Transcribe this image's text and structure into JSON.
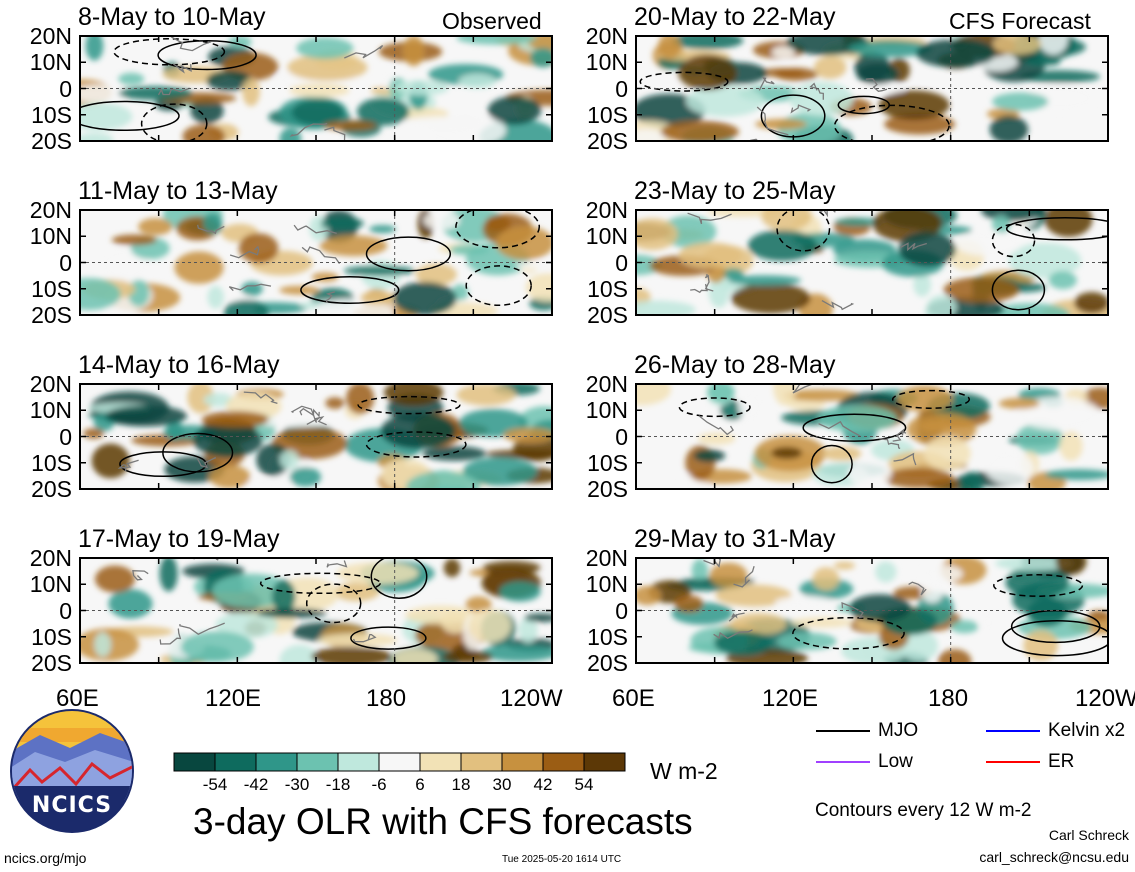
{
  "left_column_label": "Observed",
  "right_column_label": "CFS Forecast",
  "lat_labels": [
    "20N",
    "10N",
    "0",
    "10S",
    "20S"
  ],
  "lon_labels": [
    "60E",
    "120E",
    "180",
    "120W"
  ],
  "main_title": "3-day OLR with CFS forecasts",
  "units": "W m-2",
  "contour_note": "Contours every 12 W m-2",
  "author": "Carl Schreck",
  "email": "carl_schreck@ncsu.edu",
  "website": "ncics.org/mjo",
  "timestamp": "Tue 2025-05-20 1614 UTC",
  "logo_text": "NCICS",
  "legend": [
    {
      "label": "MJO",
      "color": "#000000"
    },
    {
      "label": "Kelvin x2",
      "color": "#0000ff"
    },
    {
      "label": "Low",
      "color": "#a040ff"
    },
    {
      "label": "ER",
      "color": "#ff0000"
    }
  ],
  "chart_data": {
    "type": "heatmap",
    "variable": "OLR anomaly",
    "units": "W m-2",
    "x_range": [
      "60E",
      "120W"
    ],
    "y_range": [
      "20S",
      "20N"
    ],
    "colorbar": {
      "ticks": [
        -54,
        -42,
        -30,
        -18,
        -6,
        6,
        18,
        30,
        42,
        54
      ],
      "colors": [
        "#08473f",
        "#0e6b5e",
        "#2f9689",
        "#6cc2b0",
        "#bfe8dd",
        "#f7f7f7",
        "#f2e2b6",
        "#e2c07f",
        "#c7913f",
        "#9b5d14",
        "#5c3806"
      ]
    },
    "panels": [
      {
        "title": "8-May to 10-May",
        "source": "Observed"
      },
      {
        "title": "20-May to 22-May",
        "source": "CFS Forecast"
      },
      {
        "title": "11-May to 13-May",
        "source": "Observed"
      },
      {
        "title": "23-May to 25-May",
        "source": "CFS Forecast"
      },
      {
        "title": "14-May to 16-May",
        "source": "Observed"
      },
      {
        "title": "26-May to 28-May",
        "source": "CFS Forecast"
      },
      {
        "title": "17-May to 19-May",
        "source": "Observed"
      },
      {
        "title": "29-May to 31-May",
        "source": "CFS Forecast"
      }
    ]
  }
}
